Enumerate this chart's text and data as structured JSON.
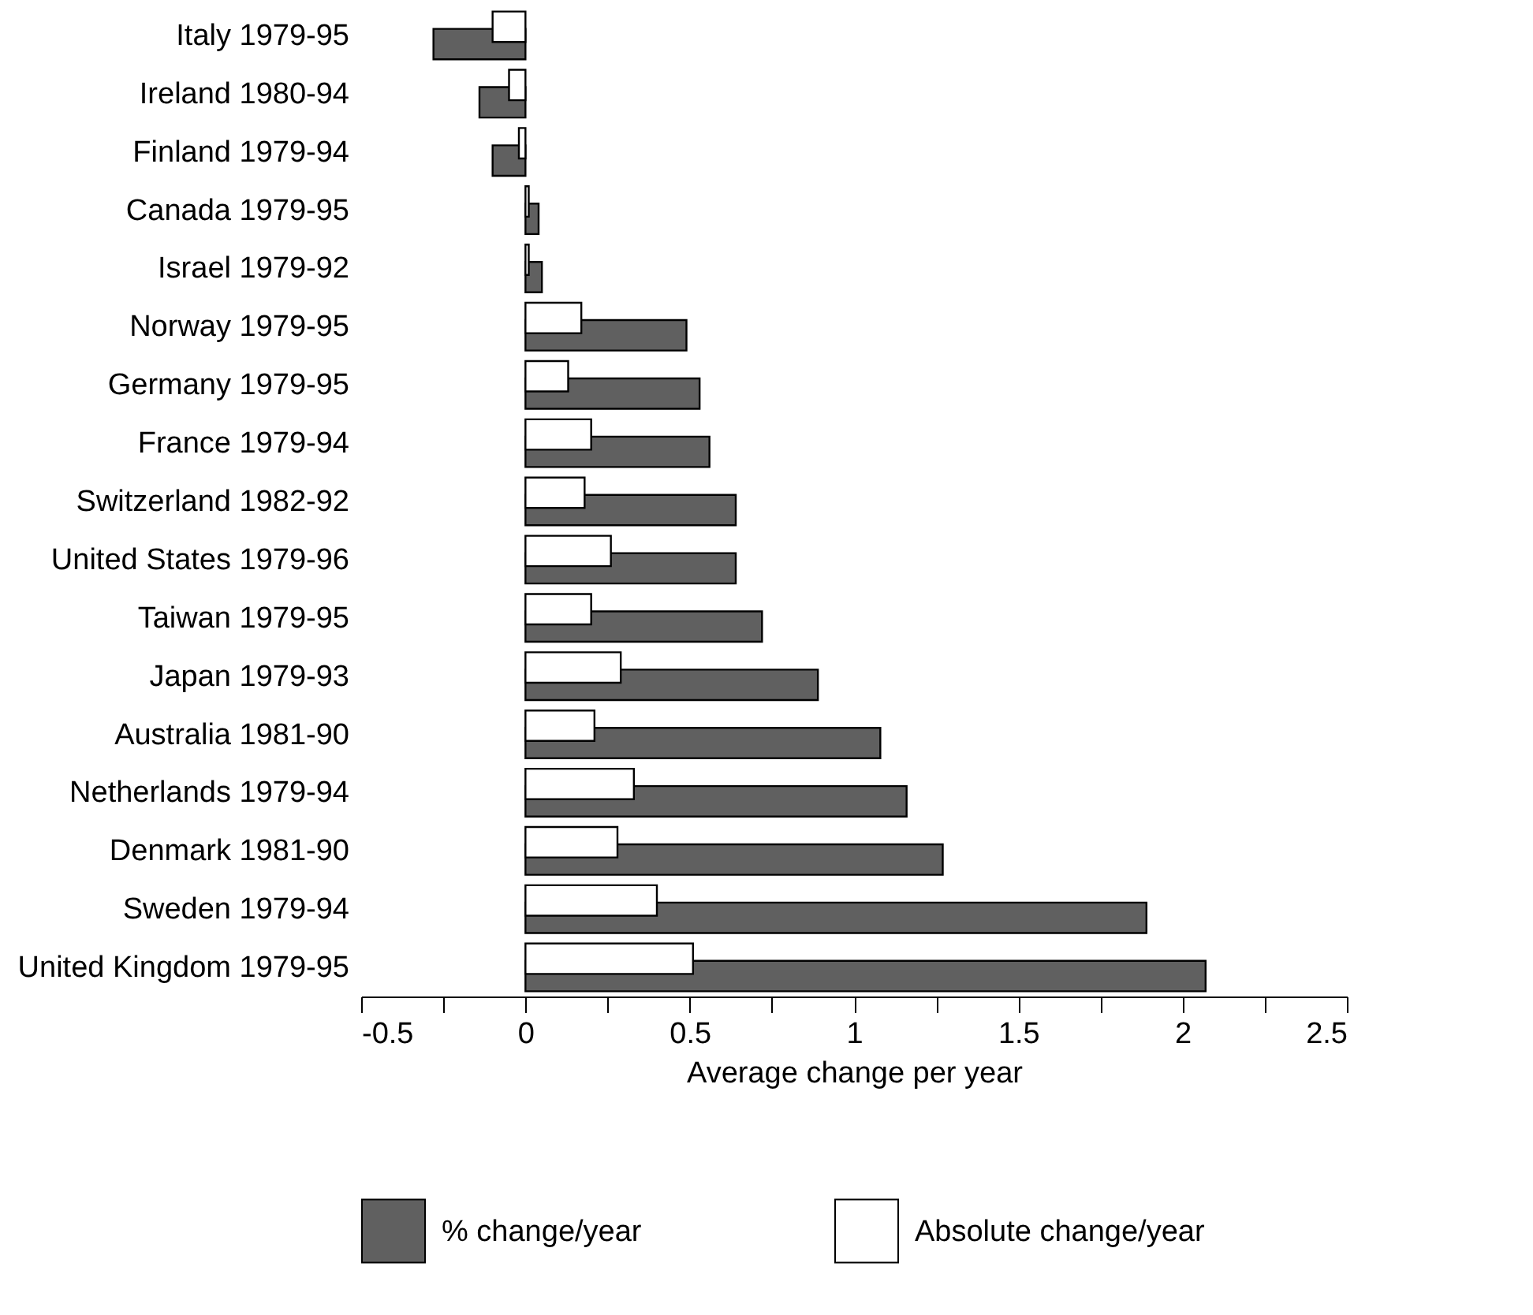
{
  "chart_data": {
    "type": "bar",
    "orientation": "horizontal",
    "categories": [
      "Italy 1979-95",
      "Ireland 1980-94",
      "Finland 1979-94",
      "Canada 1979-95",
      "Israel 1979-92",
      "Norway 1979-95",
      "Germany 1979-95",
      "France 1979-94",
      "Switzerland 1982-92",
      "United States 1979-96",
      "Taiwan 1979-95",
      "Japan 1979-93",
      "Australia 1981-90",
      "Netherlands 1979-94",
      "Denmark 1981-90",
      "Sweden 1979-94",
      "United Kingdom 1979-95"
    ],
    "series": [
      {
        "name": "% change/year",
        "color": "#606060",
        "values": [
          -0.28,
          -0.14,
          -0.1,
          0.04,
          0.05,
          0.49,
          0.53,
          0.56,
          0.64,
          0.64,
          0.72,
          0.89,
          1.08,
          1.16,
          1.27,
          1.89,
          2.07
        ]
      },
      {
        "name": "Absolute change/year",
        "color": "#ffffff",
        "values": [
          -0.1,
          -0.05,
          -0.02,
          0.01,
          0.01,
          0.17,
          0.13,
          0.2,
          0.18,
          0.26,
          0.2,
          0.29,
          0.21,
          0.33,
          0.28,
          0.4,
          0.51
        ]
      }
    ],
    "xlabel": "Average change per year",
    "xlim": [
      -0.5,
      2.5
    ],
    "xticks": [
      -0.5,
      {
        "value": -0.25,
        "label": null
      },
      0,
      {
        "value": 0.25,
        "label": null
      },
      0.5,
      {
        "value": 0.75,
        "label": null
      },
      1,
      {
        "value": 1.25,
        "label": null
      },
      1.5,
      {
        "value": 1.75,
        "label": null
      },
      2,
      {
        "value": 2.25,
        "label": null
      },
      2.5
    ],
    "legend": "bottom",
    "grid": false
  }
}
